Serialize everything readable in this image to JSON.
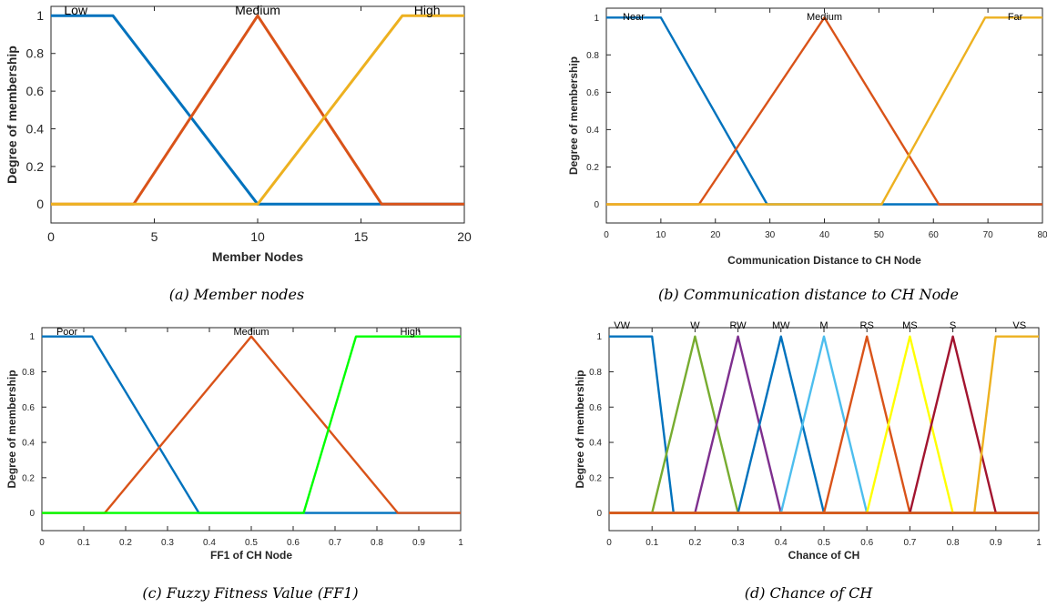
{
  "figure": {
    "caption_a": "(a) Member nodes",
    "caption_b": "(b) Communication distance to CH Node",
    "caption_c": "(c) Fuzzy Fitness Value (FF1)",
    "caption_d": "(d) Chance of CH"
  },
  "chart_data": [
    {
      "id": "a",
      "type": "line",
      "xlabel": "Member Nodes",
      "ylabel": "Degree of membership",
      "xlim": [
        0,
        20
      ],
      "ylim": [
        -0.1,
        1.05
      ],
      "xticks": [
        0,
        5,
        10,
        15,
        20
      ],
      "xtick_labels": [
        "0",
        "5",
        "10",
        "15",
        "20"
      ],
      "yticks": [
        0,
        0.2,
        0.4,
        0.6,
        0.8,
        1
      ],
      "ytick_labels": [
        "0",
        "0.2",
        "0.4",
        "0.6",
        "0.8",
        "1"
      ],
      "grid": false,
      "series": [
        {
          "name": "Low",
          "color": "#0072BD",
          "x": [
            0,
            3,
            10,
            20
          ],
          "y": [
            1,
            1,
            0,
            0
          ]
        },
        {
          "name": "Medium",
          "color": "#D95319",
          "x": [
            0,
            4,
            10,
            16,
            20
          ],
          "y": [
            0,
            0,
            1,
            0,
            0
          ]
        },
        {
          "name": "High",
          "color": "#EDB120",
          "x": [
            0,
            10,
            17,
            20
          ],
          "y": [
            0,
            0,
            1,
            1
          ]
        }
      ],
      "mf_labels": [
        {
          "text": "Low",
          "x": 1.2
        },
        {
          "text": "Medium",
          "x": 10
        },
        {
          "text": "High",
          "x": 18.2
        }
      ]
    },
    {
      "id": "b",
      "type": "line",
      "xlabel": "Communication Distance to CH Node",
      "ylabel": "Degree of membership",
      "xlim": [
        0,
        80
      ],
      "ylim": [
        -0.1,
        1.05
      ],
      "xticks": [
        0,
        10,
        20,
        30,
        40,
        50,
        60,
        70,
        80
      ],
      "xtick_labels": [
        "0",
        "10",
        "20",
        "30",
        "40",
        "50",
        "60",
        "70",
        "80"
      ],
      "yticks": [
        0,
        0.2,
        0.4,
        0.6,
        0.8,
        1
      ],
      "ytick_labels": [
        "0",
        "0.2",
        "0.4",
        "0.6",
        "0.8",
        "1"
      ],
      "grid": false,
      "series": [
        {
          "name": "Near",
          "color": "#0072BD",
          "x": [
            0,
            10,
            29.5,
            80
          ],
          "y": [
            1,
            1,
            0,
            0
          ]
        },
        {
          "name": "Medium",
          "color": "#D95319",
          "x": [
            0,
            17,
            40,
            61,
            80
          ],
          "y": [
            0,
            0,
            1,
            0,
            0
          ]
        },
        {
          "name": "Far",
          "color": "#EDB120",
          "x": [
            0,
            50.5,
            69.5,
            80
          ],
          "y": [
            0,
            0,
            1,
            1
          ]
        }
      ],
      "mf_labels": [
        {
          "text": "Near",
          "x": 5
        },
        {
          "text": "Medium",
          "x": 40
        },
        {
          "text": "Far",
          "x": 75
        }
      ]
    },
    {
      "id": "c",
      "type": "line",
      "xlabel": "FF1 of CH Node",
      "ylabel": "Degree of membership",
      "xlim": [
        0,
        1
      ],
      "ylim": [
        -0.1,
        1.05
      ],
      "xticks": [
        0,
        0.1,
        0.2,
        0.3,
        0.4,
        0.5,
        0.6,
        0.7,
        0.8,
        0.9,
        1
      ],
      "xtick_labels": [
        "0",
        "0.1",
        "0.2",
        "0.3",
        "0.4",
        "0.5",
        "0.6",
        "0.7",
        "0.8",
        "0.9",
        "1"
      ],
      "yticks": [
        0,
        0.2,
        0.4,
        0.6,
        0.8,
        1
      ],
      "ytick_labels": [
        "0",
        "0.2",
        "0.4",
        "0.6",
        "0.8",
        "1"
      ],
      "grid": false,
      "series": [
        {
          "name": "Poor",
          "color": "#0072BD",
          "x": [
            0,
            0.12,
            0.375,
            1
          ],
          "y": [
            1,
            1,
            0,
            0
          ]
        },
        {
          "name": "Medium",
          "color": "#D95319",
          "x": [
            0,
            0.15,
            0.5,
            0.85,
            1
          ],
          "y": [
            0,
            0,
            1,
            0,
            0
          ]
        },
        {
          "name": "High",
          "color": "#00FF00",
          "x": [
            0,
            0.625,
            0.75,
            1
          ],
          "y": [
            0,
            0,
            1,
            1
          ]
        }
      ],
      "mf_labels": [
        {
          "text": "Poor",
          "x": 0.06
        },
        {
          "text": "Medium",
          "x": 0.5
        },
        {
          "text": "High",
          "x": 0.88
        }
      ]
    },
    {
      "id": "d",
      "type": "line",
      "xlabel": "Chance of CH",
      "ylabel": "Degree of membership",
      "xlim": [
        0,
        1
      ],
      "ylim": [
        -0.1,
        1.05
      ],
      "xticks": [
        0,
        0.1,
        0.2,
        0.3,
        0.4,
        0.5,
        0.6,
        0.7,
        0.8,
        0.9,
        1
      ],
      "xtick_labels": [
        "0",
        "0.1",
        "0.2",
        "0.3",
        "0.4",
        "0.5",
        "0.6",
        "0.7",
        "0.8",
        "0.9",
        "1"
      ],
      "yticks": [
        0,
        0.2,
        0.4,
        0.6,
        0.8,
        1
      ],
      "ytick_labels": [
        "0",
        "0.2",
        "0.4",
        "0.6",
        "0.8",
        "1"
      ],
      "grid": false,
      "series": [
        {
          "name": "VW",
          "color": "#0072BD",
          "x": [
            0,
            0.1,
            0.15,
            1
          ],
          "y": [
            1,
            1,
            0,
            0
          ]
        },
        {
          "name": "W",
          "color": "#77AC30",
          "x": [
            0,
            0.1,
            0.2,
            0.3,
            1
          ],
          "y": [
            0,
            0,
            1,
            0,
            0
          ]
        },
        {
          "name": "RW",
          "color": "#7E2F8E",
          "x": [
            0,
            0.2,
            0.3,
            0.4,
            1
          ],
          "y": [
            0,
            0,
            1,
            0,
            0
          ]
        },
        {
          "name": "MW",
          "color": "#0072BD",
          "x": [
            0,
            0.3,
            0.4,
            0.5,
            1
          ],
          "y": [
            0,
            0,
            1,
            0,
            0
          ]
        },
        {
          "name": "M",
          "color": "#4DBEEE",
          "x": [
            0,
            0.4,
            0.5,
            0.6,
            1
          ],
          "y": [
            0,
            0,
            1,
            0,
            0
          ]
        },
        {
          "name": "RS",
          "color": "#D95319",
          "x": [
            0,
            0.5,
            0.6,
            0.7,
            1
          ],
          "y": [
            0,
            0,
            1,
            0,
            0
          ]
        },
        {
          "name": "MS",
          "color": "#FFFF00",
          "x": [
            0,
            0.6,
            0.7,
            0.8,
            1
          ],
          "y": [
            0,
            0,
            1,
            0,
            0
          ]
        },
        {
          "name": "S",
          "color": "#A2142F",
          "x": [
            0,
            0.7,
            0.8,
            0.9,
            1
          ],
          "y": [
            0,
            0,
            1,
            0,
            0
          ]
        },
        {
          "name": "VS",
          "color": "#EDB120",
          "x": [
            0,
            0.85,
            0.9,
            1
          ],
          "y": [
            0,
            0,
            1,
            1
          ]
        },
        {
          "name": "",
          "color": "#D95319",
          "x": [
            0,
            1
          ],
          "y": [
            0,
            0
          ]
        }
      ],
      "mf_labels": [
        {
          "text": "VW",
          "x": 0.03
        },
        {
          "text": "W",
          "x": 0.2
        },
        {
          "text": "RW",
          "x": 0.3
        },
        {
          "text": "MW",
          "x": 0.4
        },
        {
          "text": "M",
          "x": 0.5
        },
        {
          "text": "RS",
          "x": 0.6
        },
        {
          "text": "MS",
          "x": 0.7
        },
        {
          "text": "S",
          "x": 0.8
        },
        {
          "text": "VS",
          "x": 0.955
        }
      ]
    }
  ]
}
